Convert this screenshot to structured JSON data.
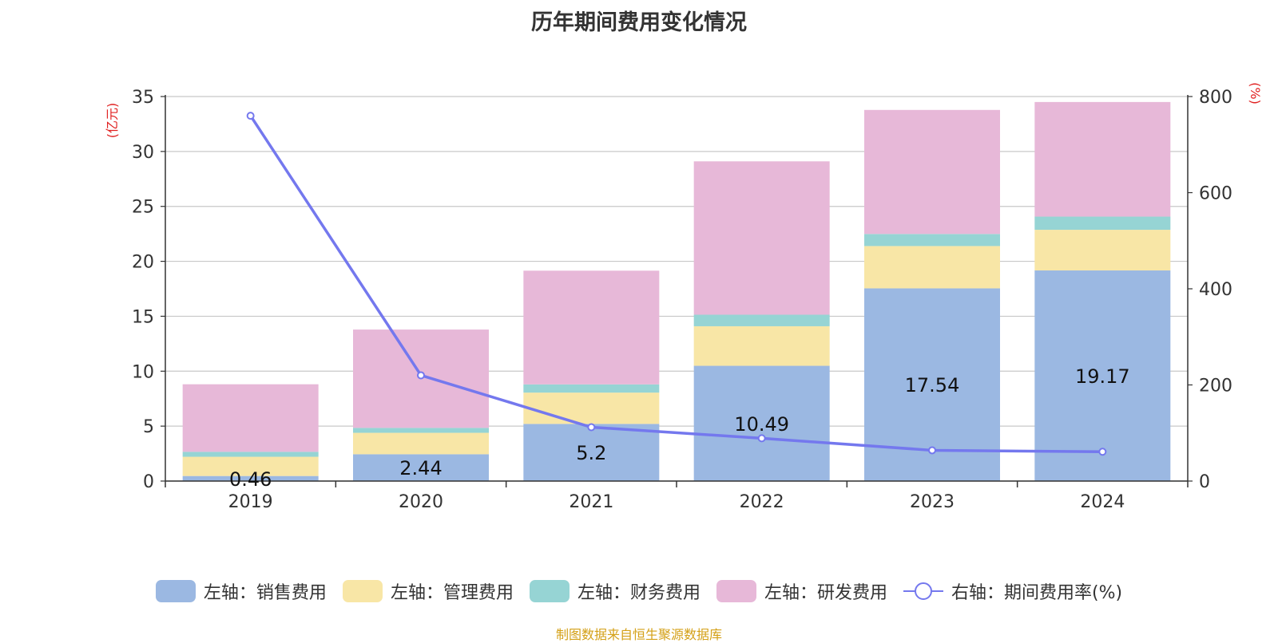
{
  "chart_data": {
    "type": "bar",
    "title": "历年期间费用变化情况",
    "categories": [
      "2019",
      "2020",
      "2021",
      "2022",
      "2023",
      "2024"
    ],
    "y_left": {
      "label": "(亿元)",
      "ylim": [
        0,
        35
      ],
      "ticks": [
        "0",
        "5",
        "10",
        "15",
        "20",
        "25",
        "30",
        "35"
      ]
    },
    "y_right": {
      "label": "(%)",
      "ylim": [
        0,
        800
      ],
      "ticks": [
        "0",
        "200",
        "400",
        "600",
        "800"
      ]
    },
    "grid": true,
    "legend_position": "bottom",
    "series": [
      {
        "name": "左轴：销售费用",
        "axis": "left",
        "color": "#9bb8e2",
        "values": [
          0.46,
          2.44,
          5.2,
          10.49,
          17.54,
          19.17
        ],
        "labels": [
          "0.46",
          "2.44",
          "5.2",
          "10.49",
          "17.54",
          "19.17"
        ]
      },
      {
        "name": "左轴：管理费用",
        "axis": "left",
        "color": "#f8e6a6",
        "values": [
          1.75,
          1.95,
          2.85,
          3.6,
          3.85,
          3.7
        ]
      },
      {
        "name": "左轴：财务费用",
        "axis": "left",
        "color": "#96d4d4",
        "values": [
          0.45,
          0.45,
          0.75,
          1.05,
          1.1,
          1.2
        ]
      },
      {
        "name": "左轴：研发费用",
        "axis": "left",
        "color": "#e7b8d8",
        "values": [
          6.15,
          8.95,
          10.35,
          13.96,
          11.29,
          10.43
        ]
      },
      {
        "name": "右轴：期间费用率(%)",
        "axis": "right",
        "type": "line",
        "color": "#7478ee",
        "values": [
          760,
          220,
          112,
          89,
          64,
          61
        ]
      }
    ]
  },
  "source": "制图数据来自恒生聚源数据库"
}
